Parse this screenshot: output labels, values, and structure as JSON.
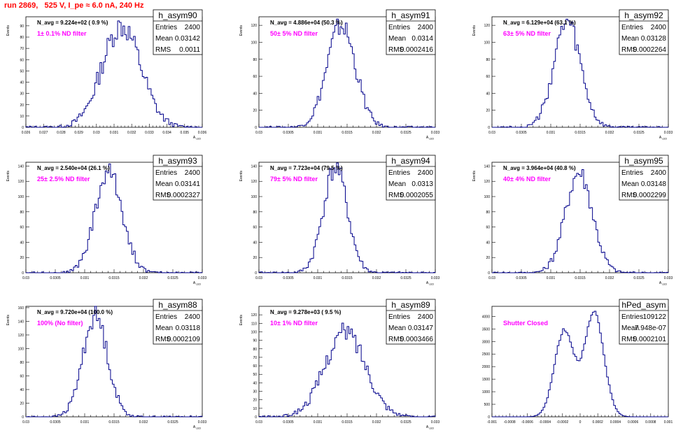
{
  "page": {
    "title": "run 2869,   525 V, I_pe ≈ 6.0 nA, 240 Hz"
  },
  "chart_data": [
    {
      "type": "histogram",
      "name": "h_asym90",
      "annotation": "N_avg = 9.224e+02 ( 0.9 %)",
      "filter_label": "1± 0.1% ND filter",
      "stats": {
        "entries": "2400",
        "mean": "0.03142",
        "rms": "0.0011"
      },
      "xlabel": "A_LED",
      "ylabel": "Events",
      "xlim": [
        0.026,
        0.036
      ],
      "ylim": [
        0,
        98
      ],
      "x_ticks": [
        "0.026",
        "0.027",
        "0.028",
        "0.029",
        "0.03",
        "0.031",
        "0.032",
        "0.033",
        "0.034",
        "0.035",
        "0.036"
      ],
      "x_tick_values": [
        0.026,
        0.027,
        0.028,
        0.029,
        0.03,
        0.031,
        0.032,
        0.033,
        0.034,
        0.035,
        0.036
      ],
      "y_ticks": [
        0,
        10,
        20,
        30,
        40,
        50,
        60,
        70,
        80,
        90
      ],
      "mean": 0.03142,
      "sigma": 0.0011,
      "peak": 90
    },
    {
      "type": "histogram",
      "name": "h_asym91",
      "annotation": "N_avg = 4.886e+04 (50.3 %)",
      "filter_label": "50± 5% ND filter",
      "stats": {
        "entries": "2400",
        "mean": "0.0314",
        "rms": "0.0002416"
      },
      "xlabel": "A_LED",
      "ylabel": "Events",
      "xlim": [
        0.03,
        0.033
      ],
      "ylim": [
        0,
        130
      ],
      "x_ticks": [
        "0.03",
        "0.0305",
        "0.031",
        "0.0315",
        "0.032",
        "0.0325",
        "0.033"
      ],
      "x_tick_values": [
        0.03,
        0.0305,
        0.031,
        0.0315,
        0.032,
        0.0325,
        0.033
      ],
      "y_ticks": [
        0,
        20,
        40,
        60,
        80,
        100,
        120
      ],
      "mean": 0.0314,
      "sigma": 0.0002416,
      "peak": 120
    },
    {
      "type": "histogram",
      "name": "h_asym92",
      "annotation": "N_avg = 6.129e+04 (63.1 %)",
      "filter_label": "63± 5% ND filter",
      "stats": {
        "entries": "2400",
        "mean": "0.03128",
        "rms": "0.0002264"
      },
      "xlabel": "A_LED",
      "ylabel": "Events",
      "xlim": [
        0.03,
        0.033
      ],
      "ylim": [
        0,
        130
      ],
      "x_ticks": [
        "0.03",
        "0.0305",
        "0.031",
        "0.0315",
        "0.032",
        "0.0325",
        "0.033"
      ],
      "x_tick_values": [
        0.03,
        0.0305,
        0.031,
        0.0315,
        0.032,
        0.0325,
        0.033
      ],
      "y_ticks": [
        0,
        20,
        40,
        60,
        80,
        100,
        120
      ],
      "mean": 0.03128,
      "sigma": 0.0002264,
      "peak": 122
    },
    {
      "type": "histogram",
      "name": "h_asym93",
      "annotation": "N_avg = 2.540e+04 (26.1 %)",
      "filter_label": "25± 2.5% ND filter",
      "stats": {
        "entries": "2400",
        "mean": "0.03141",
        "rms": "0.0002327"
      },
      "xlabel": "A_LED",
      "ylabel": "Events",
      "xlim": [
        0.03,
        0.033
      ],
      "ylim": [
        0,
        145
      ],
      "x_ticks": [
        "0.03",
        "0.0305",
        "0.031",
        "0.0315",
        "0.032",
        "0.0325",
        "0.033"
      ],
      "x_tick_values": [
        0.03,
        0.0305,
        0.031,
        0.0315,
        0.032,
        0.0325,
        0.033
      ],
      "y_ticks": [
        0,
        20,
        40,
        60,
        80,
        100,
        120,
        140
      ],
      "mean": 0.03141,
      "sigma": 0.0002327,
      "peak": 132
    },
    {
      "type": "histogram",
      "name": "h_asym94",
      "annotation": "N_avg = 7.723e+04 (79.5 %)",
      "filter_label": "79± 5% ND filter",
      "stats": {
        "entries": "2400",
        "mean": "0.0313",
        "rms": "0.0002055"
      },
      "xlabel": "A_LED",
      "ylabel": "Events",
      "xlim": [
        0.03,
        0.033
      ],
      "ylim": [
        0,
        145
      ],
      "x_ticks": [
        "0.03",
        "0.0305",
        "0.031",
        "0.0315",
        "0.032",
        "0.0325",
        "0.033"
      ],
      "x_tick_values": [
        0.03,
        0.0305,
        0.031,
        0.0315,
        0.032,
        0.0325,
        0.033
      ],
      "y_ticks": [
        0,
        20,
        40,
        60,
        80,
        100,
        120,
        140
      ],
      "mean": 0.0313,
      "sigma": 0.0002055,
      "peak": 138
    },
    {
      "type": "histogram",
      "name": "h_asym95",
      "annotation": "N_avg = 3.964e+04 (40.8 %)",
      "filter_label": "40± 4% ND filter",
      "stats": {
        "entries": "2400",
        "mean": "0.03148",
        "rms": "0.0002299"
      },
      "xlabel": "A_LED",
      "ylabel": "Events",
      "xlim": [
        0.03,
        0.033
      ],
      "ylim": [
        0,
        145
      ],
      "x_ticks": [
        "0.03",
        "0.0305",
        "0.031",
        "0.0315",
        "0.032",
        "0.0325",
        "0.033"
      ],
      "x_tick_values": [
        0.03,
        0.0305,
        0.031,
        0.0315,
        0.032,
        0.0325,
        0.033
      ],
      "y_ticks": [
        0,
        20,
        40,
        60,
        80,
        100,
        120,
        140
      ],
      "mean": 0.03148,
      "sigma": 0.0002299,
      "peak": 132
    },
    {
      "type": "histogram",
      "name": "h_asym88",
      "annotation": "N_avg = 9.720e+04 (100.0 %)",
      "filter_label": "100% (No filter)",
      "stats": {
        "entries": "2400",
        "mean": "0.03118",
        "rms": "0.0002109"
      },
      "xlabel": "A_LED",
      "ylabel": "Events",
      "xlim": [
        0.03,
        0.033
      ],
      "ylim": [
        0,
        162
      ],
      "x_ticks": [
        "0.03",
        "0.0305",
        "0.031",
        "0.0315",
        "0.032",
        "0.0325",
        "0.033"
      ],
      "x_tick_values": [
        0.03,
        0.0305,
        0.031,
        0.0315,
        0.032,
        0.0325,
        0.033
      ],
      "y_ticks": [
        0,
        20,
        40,
        60,
        80,
        100,
        120,
        140,
        160
      ],
      "mean": 0.03118,
      "sigma": 0.0002109,
      "peak": 148
    },
    {
      "type": "histogram",
      "name": "h_asym89",
      "annotation": "N_avg = 9.278e+03 ( 9.5 %)",
      "filter_label": "10± 1% ND filter",
      "stats": {
        "entries": "2400",
        "mean": "0.03147",
        "rms": "0.0003466"
      },
      "xlabel": "A_LED",
      "ylabel": "Events",
      "xlim": [
        0.03,
        0.033
      ],
      "ylim": [
        0,
        130
      ],
      "x_ticks": [
        "0.03",
        "0.0305",
        "0.031",
        "0.0315",
        "0.032",
        "0.0325",
        "0.033"
      ],
      "x_tick_values": [
        0.03,
        0.0305,
        0.031,
        0.0315,
        0.032,
        0.0325,
        0.033
      ],
      "y_ticks": [
        0,
        10,
        20,
        30,
        40,
        50,
        60,
        70,
        80,
        90,
        100,
        110,
        120
      ],
      "mean": 0.03147,
      "sigma": 0.0003466,
      "peak": 100
    },
    {
      "type": "histogram",
      "name": "hPed_asym",
      "annotation": "",
      "filter_label": "Shutter Closed",
      "stats": {
        "entries": "109122",
        "mean": "7.948e-07",
        "rms": "0.0002101"
      },
      "xlabel": "",
      "ylabel": "",
      "xlim": [
        -0.001,
        0.001
      ],
      "ylim": [
        0,
        4400
      ],
      "x_ticks": [
        "-0.001",
        "-0.0008",
        "-0.0006",
        "-0.0004",
        "-0.0002",
        "0",
        "0.0002",
        "0.0004",
        "0.0006",
        "0.0008",
        "0.001"
      ],
      "x_tick_values": [
        -0.001,
        -0.0008,
        -0.0006,
        -0.0004,
        -0.0002,
        0,
        0.0002,
        0.0004,
        0.0006,
        0.0008,
        0.001
      ],
      "y_ticks": [
        0,
        500,
        1000,
        1500,
        2000,
        2500,
        3000,
        3500,
        4000
      ],
      "mean": 7.948e-07,
      "sigma": 0.0002101,
      "double_peak": {
        "left_center": -0.00018,
        "left_height": 3450,
        "right_center": 0.00016,
        "right_height": 4100,
        "width": 0.00011
      }
    }
  ]
}
